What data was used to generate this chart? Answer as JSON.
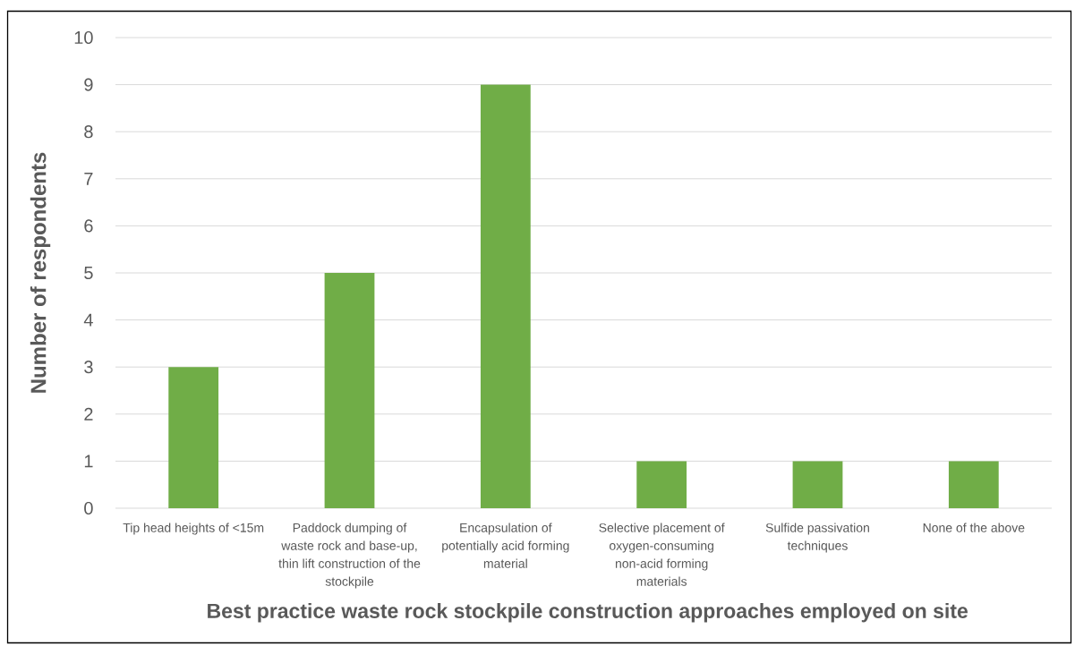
{
  "chart_data": {
    "type": "bar",
    "categories": [
      "Tip head heights of <15m",
      "Paddock dumping of waste rock and base-up, thin lift construction of the stockpile",
      "Encapsulation of potentially acid forming material",
      "Selective placement of oxygen-consuming non-acid forming materials",
      "Sulfide passivation techniques",
      "None of the above"
    ],
    "values": [
      3,
      5,
      9,
      1,
      1,
      1
    ],
    "color": "#70ad47",
    "xlabel": "Best practice waste rock stockpile construction approaches employed on site",
    "ylabel": "Number of respondents",
    "ylim": [
      0,
      10
    ],
    "yticks": [
      0,
      1,
      2,
      3,
      4,
      5,
      6,
      7,
      8,
      9,
      10
    ],
    "grid": "y"
  }
}
